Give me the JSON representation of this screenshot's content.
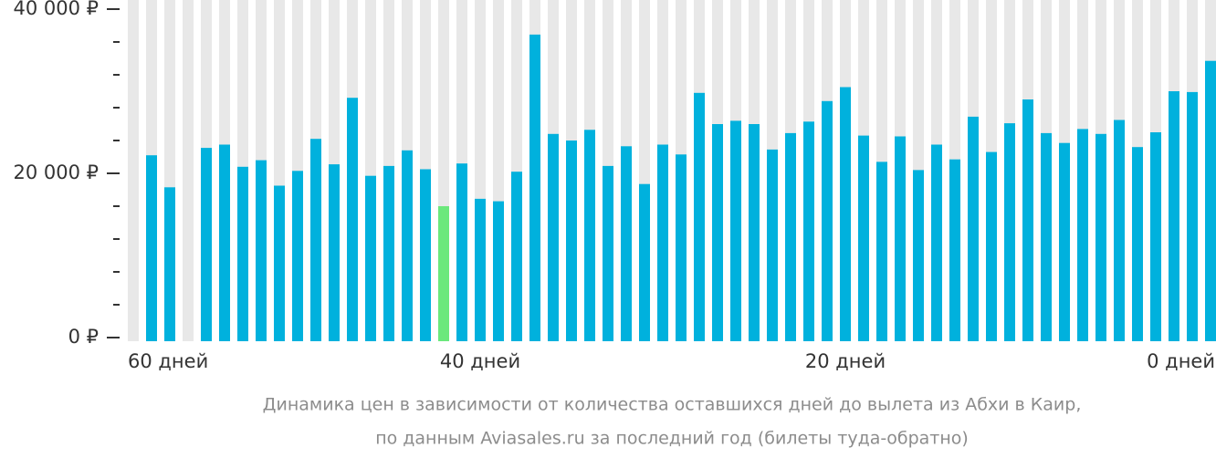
{
  "chart_data": {
    "type": "bar",
    "caption": [
      "Динамика цен в зависимости от количества оставшихся дней до вылета из Абхи в Каир,",
      "по данным Aviasales.ru за последний год (билеты туда-обратно)"
    ],
    "categories": [
      "60 дней",
      null,
      null,
      null,
      null,
      null,
      null,
      null,
      null,
      null,
      null,
      null,
      null,
      null,
      null,
      null,
      null,
      null,
      null,
      "40 дней",
      null,
      null,
      null,
      null,
      null,
      null,
      null,
      null,
      null,
      null,
      null,
      null,
      null,
      null,
      null,
      null,
      null,
      null,
      null,
      "20 дней",
      null,
      null,
      null,
      null,
      null,
      null,
      null,
      null,
      null,
      null,
      null,
      null,
      null,
      null,
      null,
      null,
      null,
      null,
      null,
      "0 дней"
    ],
    "values": [
      null,
      22200,
      18300,
      null,
      23100,
      23500,
      20800,
      21600,
      18500,
      20300,
      24200,
      21100,
      29200,
      19700,
      20900,
      22800,
      20500,
      16000,
      21200,
      16900,
      16600,
      20200,
      36900,
      24800,
      24000,
      25300,
      20900,
      23300,
      18700,
      23500,
      22300,
      29800,
      26000,
      26400,
      26000,
      22900,
      24900,
      26300,
      28800,
      30500,
      24600,
      21400,
      24500,
      20400,
      23500,
      21700,
      26900,
      22600,
      26100,
      29000,
      24900,
      23700,
      25400,
      24800,
      26500,
      23200,
      25000,
      30000,
      29900,
      33700
    ],
    "color": "#00b1dd",
    "min_color": "#6be87c",
    "background_color": "#e8e8e8",
    "ylim": [
      0,
      40000
    ],
    "yticks": [
      {
        "value": 0,
        "label": "0 ₽"
      },
      {
        "value": 20000,
        "label": "20 000 ₽"
      },
      {
        "value": 40000,
        "label": "40 000 ₽"
      }
    ],
    "minor_yticks": [
      4000,
      8000,
      12000,
      16000,
      24000,
      28000,
      32000,
      36000
    ]
  }
}
